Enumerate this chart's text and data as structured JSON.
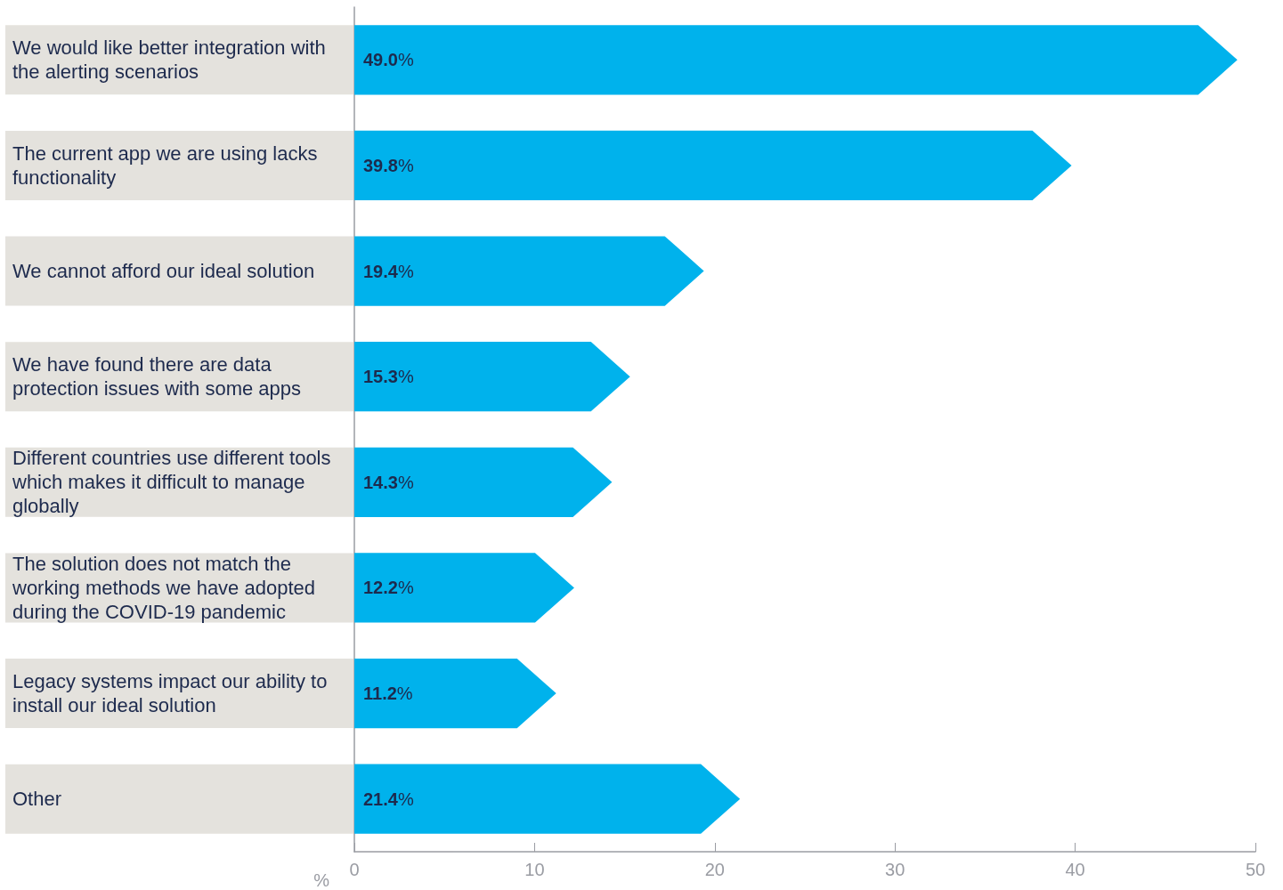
{
  "chart_data": {
    "type": "bar",
    "orientation": "horizontal",
    "xlabel": "%",
    "categories": [
      "We would like better integration with the alerting scenarios",
      "The current app we are using lacks functionality",
      "We cannot afford our ideal solution",
      "We have found there are data protection issues with some apps",
      "Different countries use different tools which makes it difficult to manage globally",
      "The solution does not match the working methods we have adopted during the COVID-19 pandemic",
      "Legacy systems impact our ability to install our ideal solution",
      "Other"
    ],
    "values": [
      49.0,
      39.8,
      19.4,
      15.3,
      14.3,
      12.2,
      11.2,
      21.4
    ],
    "value_labels": [
      "49.0%",
      "39.8%",
      "19.4%",
      "15.3%",
      "14.3%",
      "12.2%",
      "11.2%",
      "21.4%"
    ],
    "color": "#00b2ec",
    "xlim": [
      0,
      50
    ],
    "xticks": [
      0,
      10,
      20,
      30,
      40,
      50
    ],
    "grid": false
  }
}
